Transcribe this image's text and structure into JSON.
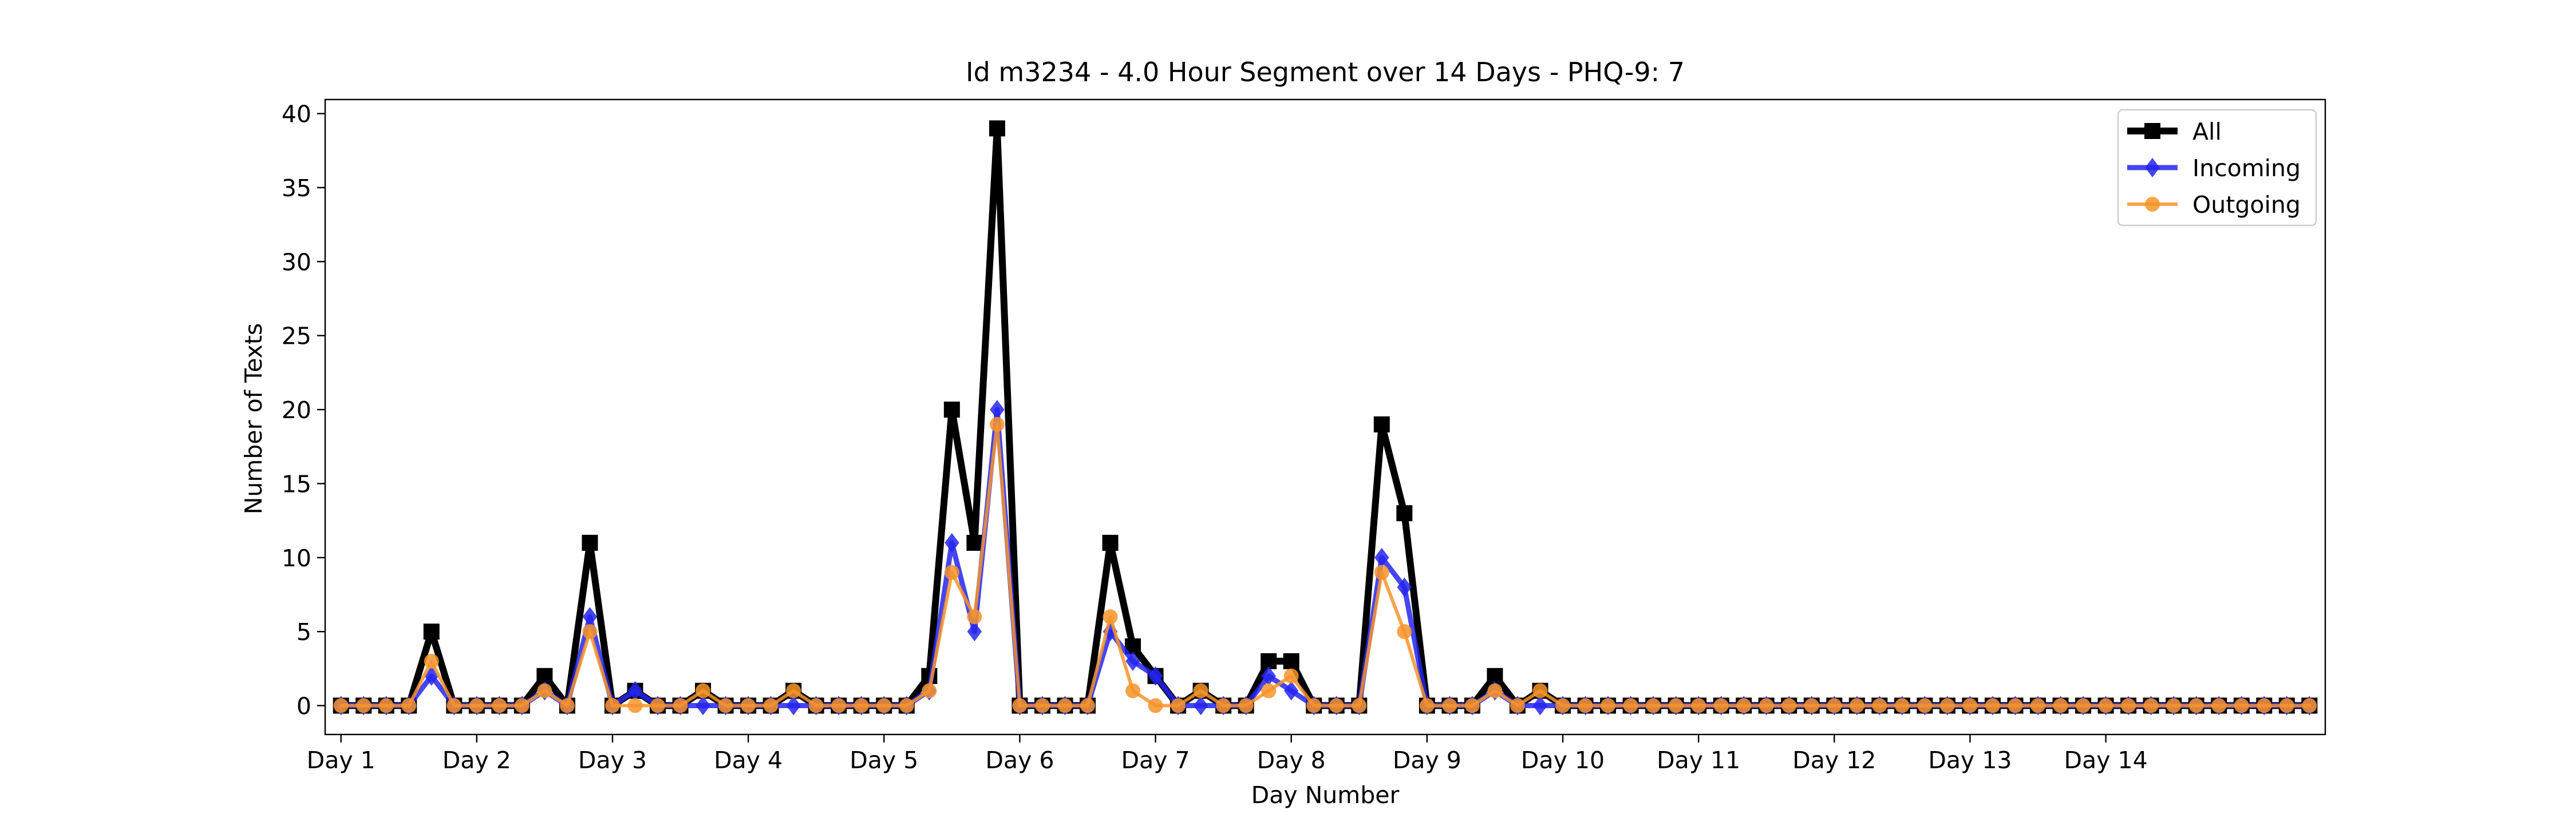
{
  "chart_data": {
    "type": "line",
    "title": "Id m3234 - 4.0 Hour Segment over 14 Days - PHQ-9: 7",
    "xlabel": "Day Number",
    "ylabel": "Number of Texts",
    "xlim": [
      -0.7,
      87.7
    ],
    "ylim": [
      -1.95,
      40.95
    ],
    "grid": false,
    "legend_position": "top-right",
    "x_ticks": [
      {
        "value": 0,
        "label": "Day 1"
      },
      {
        "value": 6,
        "label": "Day 2"
      },
      {
        "value": 12,
        "label": "Day 3"
      },
      {
        "value": 18,
        "label": "Day 4"
      },
      {
        "value": 24,
        "label": "Day 5"
      },
      {
        "value": 30,
        "label": "Day 6"
      },
      {
        "value": 36,
        "label": "Day 7"
      },
      {
        "value": 42,
        "label": "Day 8"
      },
      {
        "value": 48,
        "label": "Day 9"
      },
      {
        "value": 54,
        "label": "Day 10"
      },
      {
        "value": 60,
        "label": "Day 11"
      },
      {
        "value": 66,
        "label": "Day 12"
      },
      {
        "value": 72,
        "label": "Day 13"
      },
      {
        "value": 78,
        "label": "Day 14"
      }
    ],
    "y_ticks": [
      0,
      5,
      10,
      15,
      20,
      25,
      30,
      35,
      40
    ],
    "series": [
      {
        "name": "All",
        "color": "#000000",
        "marker": "square",
        "values": [
          0,
          0,
          0,
          0,
          5,
          0,
          0,
          0,
          0,
          2,
          0,
          11,
          0,
          1,
          0,
          0,
          1,
          0,
          0,
          0,
          1,
          0,
          0,
          0,
          0,
          0,
          2,
          20,
          11,
          39,
          0,
          0,
          0,
          0,
          11,
          4,
          2,
          0,
          1,
          0,
          0,
          3,
          3,
          0,
          0,
          0,
          19,
          13,
          0,
          0,
          0,
          2,
          0,
          1,
          0,
          0,
          0,
          0,
          0,
          0,
          0,
          0,
          0,
          0,
          0,
          0,
          0,
          0,
          0,
          0,
          0,
          0,
          0,
          0,
          0,
          0,
          0,
          0,
          0,
          0,
          0,
          0,
          0,
          0,
          0,
          0,
          0,
          0
        ]
      },
      {
        "name": "Incoming",
        "color": "#2424ee",
        "marker": "diamond",
        "values": [
          0,
          0,
          0,
          0,
          2,
          0,
          0,
          0,
          0,
          1,
          0,
          6,
          0,
          1,
          0,
          0,
          0,
          0,
          0,
          0,
          0,
          0,
          0,
          0,
          0,
          0,
          1,
          11,
          5,
          20,
          0,
          0,
          0,
          0,
          5,
          3,
          2,
          0,
          0,
          0,
          0,
          2,
          1,
          0,
          0,
          0,
          10,
          8,
          0,
          0,
          0,
          1,
          0,
          0,
          0,
          0,
          0,
          0,
          0,
          0,
          0,
          0,
          0,
          0,
          0,
          0,
          0,
          0,
          0,
          0,
          0,
          0,
          0,
          0,
          0,
          0,
          0,
          0,
          0,
          0,
          0,
          0,
          0,
          0,
          0,
          0,
          0,
          0
        ]
      },
      {
        "name": "Outgoing",
        "color": "#f7942a",
        "marker": "circle",
        "values": [
          0,
          0,
          0,
          0,
          3,
          0,
          0,
          0,
          0,
          1,
          0,
          5,
          0,
          0,
          0,
          0,
          1,
          0,
          0,
          0,
          1,
          0,
          0,
          0,
          0,
          0,
          1,
          9,
          6,
          19,
          0,
          0,
          0,
          0,
          6,
          1,
          0,
          0,
          1,
          0,
          0,
          1,
          2,
          0,
          0,
          0,
          9,
          5,
          0,
          0,
          0,
          1,
          0,
          1,
          0,
          0,
          0,
          0,
          0,
          0,
          0,
          0,
          0,
          0,
          0,
          0,
          0,
          0,
          0,
          0,
          0,
          0,
          0,
          0,
          0,
          0,
          0,
          0,
          0,
          0,
          0,
          0,
          0,
          0,
          0,
          0,
          0,
          0
        ]
      }
    ]
  }
}
